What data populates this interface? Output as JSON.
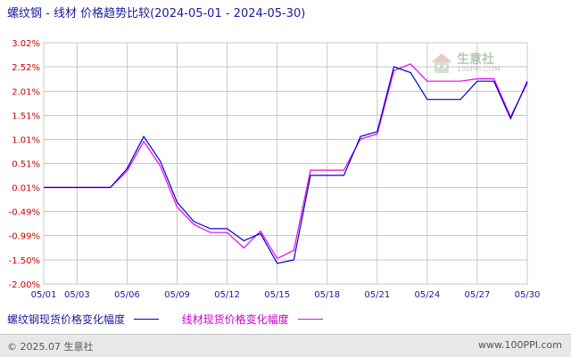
{
  "header": {
    "title": "螺纹钢 - 线材 价格趋势比较",
    "date_range": "(2024-05-01 - 2024-05-30)"
  },
  "watermark": {
    "text": "生意社",
    "sub": "100PPI.COM"
  },
  "legend": {
    "series1_label": "螺纹钢现货价格变化幅度",
    "series2_label": "线材现货价格变化幅度"
  },
  "footer": {
    "copyright": "© 2025.07 生意社",
    "site": "www.100PPI.com"
  },
  "colors": {
    "series1": "#0000cc",
    "series2": "#ee00ee",
    "grid": "#c8c8c8",
    "axis_text_negative": "#cc0000",
    "axis_text_x": "#1a1aa0"
  },
  "chart_data": {
    "type": "line",
    "title": "螺纹钢 - 线材 价格趋势比较",
    "xlabel": "",
    "ylabel": "",
    "grid": true,
    "ylim": [
      -2.0,
      3.02
    ],
    "y_ticks": [
      "3.02%",
      "2.52%",
      "2.01%",
      "1.51%",
      "1.01%",
      "0.51%",
      "0.01%",
      "-0.49%",
      "-0.99%",
      "-1.50%",
      "-2.00%"
    ],
    "y_tick_values": [
      3.02,
      2.52,
      2.01,
      1.51,
      1.01,
      0.51,
      0.01,
      -0.49,
      -0.99,
      -1.5,
      -2.0
    ],
    "x_ticks": [
      "05/01",
      "05/03",
      "05/06",
      "05/09",
      "05/12",
      "05/15",
      "05/18",
      "05/21",
      "05/24",
      "05/27",
      "05/30"
    ],
    "x": [
      "05/01",
      "05/02",
      "05/03",
      "05/04",
      "05/05",
      "05/06",
      "05/07",
      "05/08",
      "05/09",
      "05/10",
      "05/11",
      "05/12",
      "05/13",
      "05/14",
      "05/15",
      "05/16",
      "05/17",
      "05/18",
      "05/19",
      "05/20",
      "05/21",
      "05/22",
      "05/23",
      "05/24",
      "05/25",
      "05/26",
      "05/27",
      "05/28",
      "05/29",
      "05/30"
    ],
    "series": [
      {
        "name": "螺纹钢现货价格变化幅度",
        "values": [
          0.01,
          0.01,
          0.01,
          0.01,
          0.01,
          0.4,
          1.07,
          0.55,
          -0.3,
          -0.7,
          -0.85,
          -0.85,
          -1.1,
          -0.95,
          -1.57,
          -1.5,
          0.26,
          0.26,
          0.26,
          1.07,
          1.17,
          2.52,
          2.4,
          1.84,
          1.84,
          1.84,
          2.22,
          2.22,
          1.44,
          2.22
        ]
      },
      {
        "name": "线材现货价格变化幅度",
        "values": [
          0.01,
          0.01,
          0.01,
          0.01,
          0.01,
          0.35,
          0.97,
          0.45,
          -0.4,
          -0.76,
          -0.93,
          -0.93,
          -1.25,
          -0.9,
          -1.47,
          -1.3,
          0.37,
          0.37,
          0.37,
          1.02,
          1.12,
          2.44,
          2.58,
          2.22,
          2.22,
          2.22,
          2.27,
          2.27,
          1.48,
          2.18
        ]
      }
    ]
  }
}
